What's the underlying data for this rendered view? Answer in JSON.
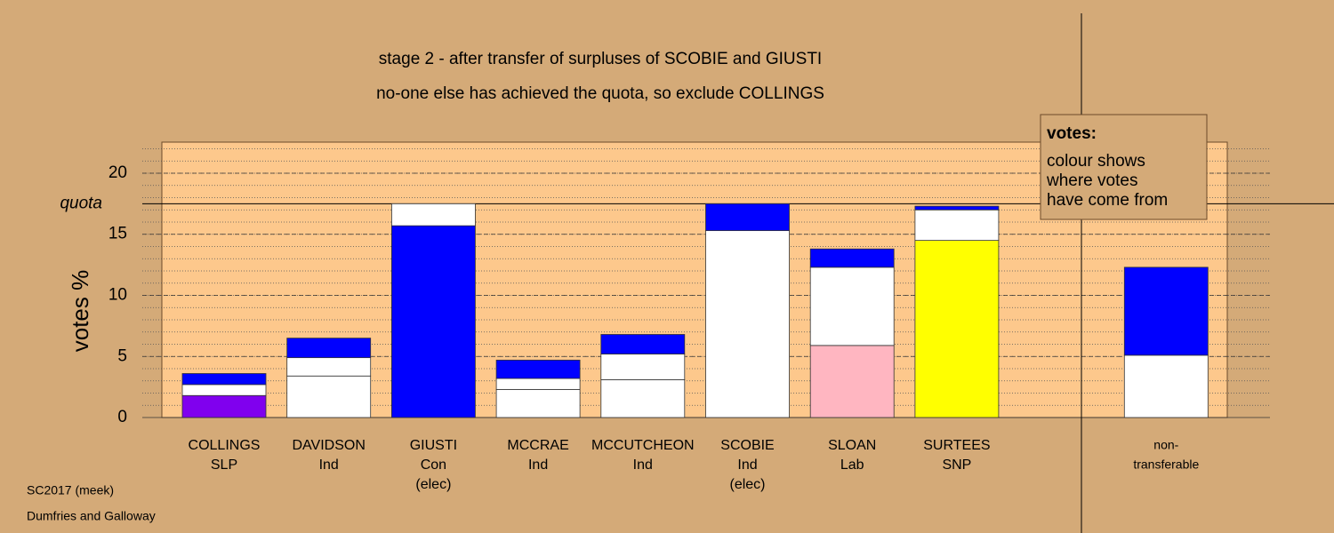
{
  "chart_data": {
    "type": "stacked_bar",
    "title": "stage 2 - after transfer of surpluses of SCOBIE and GIUSTI",
    "subtitle": "no-one else has achieved the quota, so exclude COLLINGS",
    "y_label": "votes %",
    "ylim": [
      0,
      22.5
    ],
    "yticks": [
      0,
      5,
      10,
      15,
      20
    ],
    "minor_step": 1,
    "grid": true,
    "quota": {
      "value": 17.5,
      "label": "quota"
    },
    "legend": {
      "title": "votes:",
      "lines": [
        "colour shows",
        "where votes",
        "have come from"
      ]
    },
    "footer": [
      "SC2017 (meek)",
      "Dumfries and Galloway"
    ],
    "categories": [
      {
        "lines": [
          "COLLINGS",
          "SLP"
        ],
        "segments": [
          {
            "value": 1.8,
            "color": "#8000ee"
          },
          {
            "value": 0.9,
            "color": "#ffffff"
          },
          {
            "value": 0.9,
            "color": "#0000ff"
          }
        ]
      },
      {
        "lines": [
          "DAVIDSON",
          "Ind"
        ],
        "segments": [
          {
            "value": 3.4,
            "color": "#ffffff"
          },
          {
            "value": 1.5,
            "color": "#ffffff"
          },
          {
            "value": 1.6,
            "color": "#0000ff"
          }
        ]
      },
      {
        "lines": [
          "GIUSTI",
          "Con",
          "(elec)"
        ],
        "segments": [
          {
            "value": 15.7,
            "color": "#0000ff"
          },
          {
            "value": 1.8,
            "color": "#ffffff"
          }
        ]
      },
      {
        "lines": [
          "MCCRAE",
          "Ind"
        ],
        "segments": [
          {
            "value": 2.3,
            "color": "#ffffff"
          },
          {
            "value": 0.9,
            "color": "#ffffff"
          },
          {
            "value": 1.5,
            "color": "#0000ff"
          }
        ]
      },
      {
        "lines": [
          "MCCUTCHEON",
          "Ind"
        ],
        "segments": [
          {
            "value": 3.1,
            "color": "#ffffff"
          },
          {
            "value": 2.1,
            "color": "#ffffff"
          },
          {
            "value": 1.6,
            "color": "#0000ff"
          }
        ]
      },
      {
        "lines": [
          "SCOBIE",
          "Ind",
          "(elec)"
        ],
        "segments": [
          {
            "value": 15.3,
            "color": "#ffffff"
          },
          {
            "value": 2.2,
            "color": "#0000ff"
          }
        ]
      },
      {
        "lines": [
          "SLOAN",
          "Lab"
        ],
        "segments": [
          {
            "value": 5.9,
            "color": "#ffb6c1"
          },
          {
            "value": 6.4,
            "color": "#ffffff"
          },
          {
            "value": 1.5,
            "color": "#0000ff"
          }
        ]
      },
      {
        "lines": [
          "SURTEES",
          "SNP"
        ],
        "segments": [
          {
            "value": 14.5,
            "color": "#ffff00"
          },
          {
            "value": 2.5,
            "color": "#ffffff"
          },
          {
            "value": 0.3,
            "color": "#0000ff"
          }
        ]
      },
      null,
      {
        "lines": [
          "non-",
          "transferable"
        ],
        "small": true,
        "segments": [
          {
            "value": 5.1,
            "color": "#ffffff"
          },
          {
            "value": 7.2,
            "color": "#0000ff"
          }
        ]
      }
    ]
  }
}
